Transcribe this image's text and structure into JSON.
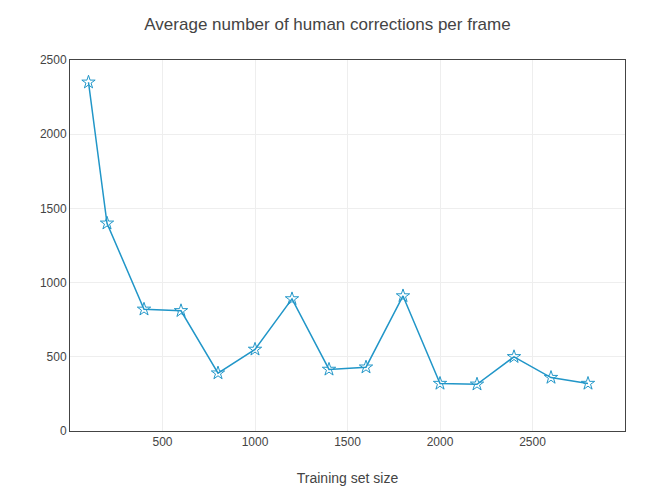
{
  "chart_data": {
    "type": "line",
    "title": "Average number of human corrections per frame",
    "xlabel": "Training set size",
    "x": [
      100,
      200,
      400,
      600,
      800,
      1000,
      1200,
      1400,
      1600,
      1800,
      2000,
      2200,
      2400,
      2600,
      2800
    ],
    "values": [
      2350,
      1400,
      820,
      810,
      390,
      550,
      890,
      415,
      430,
      910,
      320,
      315,
      500,
      360,
      320
    ],
    "color": "#2196C8",
    "marker": "star",
    "xlim": [
      0,
      3000
    ],
    "ylim": [
      0,
      2500
    ],
    "xticks": [
      500,
      1000,
      1500,
      2000,
      2500
    ],
    "yticks": [
      0,
      500,
      1000,
      1500,
      2000,
      2500
    ],
    "grid": true
  }
}
